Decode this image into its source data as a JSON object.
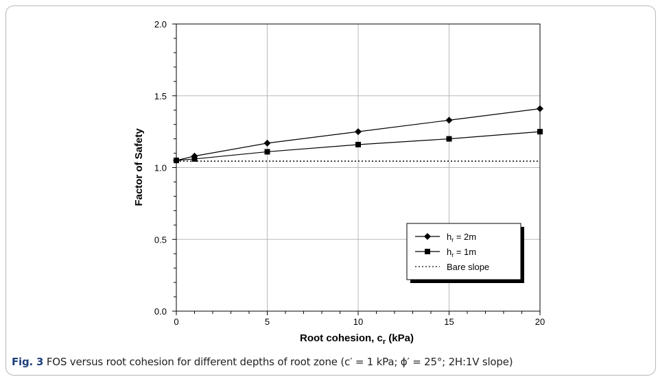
{
  "chart_data": {
    "type": "line",
    "xlabel": "Root cohesion, c",
    "xlabel_sub": "r",
    "xlabel_unit": " (kPa)",
    "ylabel": "Factor of Safety",
    "xlim": [
      0,
      20
    ],
    "ylim": [
      0,
      2
    ],
    "xticks": [
      "0",
      "5",
      "10",
      "15",
      "20"
    ],
    "yticks": [
      "0.0",
      "0.5",
      "1.0",
      "1.5",
      "2.0"
    ],
    "grid": true,
    "legend_position": "bottom-right",
    "x": [
      0,
      1,
      5,
      10,
      15,
      20
    ],
    "series": [
      {
        "name": "h",
        "name_sub": "r",
        "name_rest": " = 2m",
        "marker": "diamond",
        "line": "solid",
        "values": [
          1.05,
          1.08,
          1.17,
          1.25,
          1.33,
          1.41
        ]
      },
      {
        "name": "h",
        "name_sub": "r",
        "name_rest": " = 1m",
        "marker": "square",
        "line": "solid",
        "values": [
          1.05,
          1.06,
          1.11,
          1.16,
          1.2,
          1.25
        ]
      },
      {
        "name": "Bare slope",
        "name_sub": "",
        "name_rest": "",
        "marker": "none",
        "line": "dotted",
        "values": [
          1.045,
          1.045,
          1.045,
          1.045,
          1.045,
          1.045
        ]
      }
    ]
  },
  "caption": {
    "label": "Fig. 3",
    "text": "FOS versus root cohesion for different depths of root zone (c′ = 1 kPa; ϕ′ = 25°; 2H:1V slope)"
  }
}
